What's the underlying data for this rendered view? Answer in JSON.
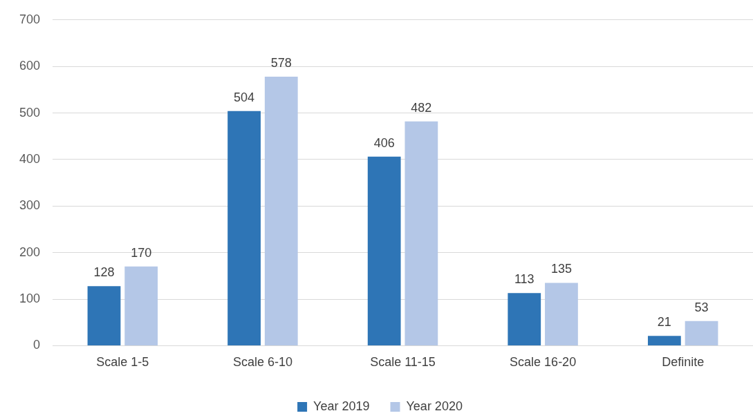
{
  "chart_data": {
    "type": "bar",
    "categories": [
      "Scale 1-5",
      "Scale 6-10",
      "Scale 11-15",
      "Scale 16-20",
      "Definite"
    ],
    "series": [
      {
        "name": "Year 2019",
        "color": "#2e75b6",
        "values": [
          128,
          504,
          406,
          113,
          21
        ]
      },
      {
        "name": "Year 2020",
        "color": "#b4c7e7",
        "values": [
          170,
          578,
          482,
          135,
          53
        ]
      }
    ],
    "ylim": [
      0,
      700
    ],
    "yticks": [
      0,
      100,
      200,
      300,
      400,
      500,
      600,
      700
    ],
    "grid": "y",
    "legend": "bottom",
    "data_labels": true
  }
}
